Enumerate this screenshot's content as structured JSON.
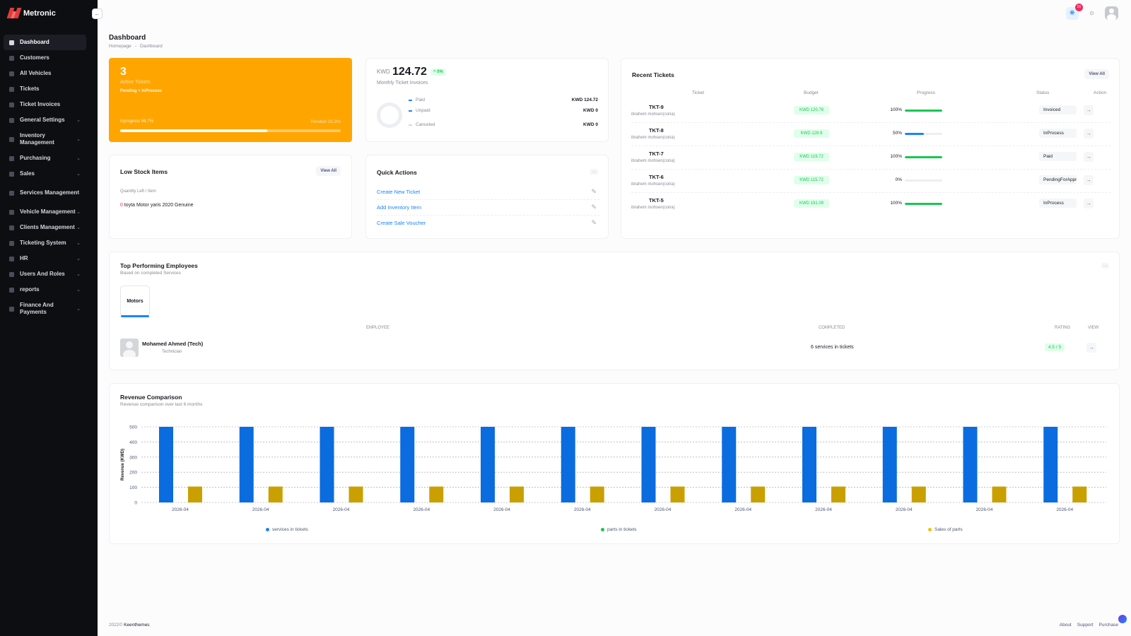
{
  "app": {
    "name": "Metronic"
  },
  "sidebar": {
    "items": [
      {
        "label": "Dashboard",
        "active": true,
        "chevron": false
      },
      {
        "label": "Customers",
        "chevron": false
      },
      {
        "label": "All Vehicles",
        "chevron": false
      },
      {
        "label": "Tickets",
        "chevron": false
      },
      {
        "label": "Ticket Invoices",
        "chevron": false
      },
      {
        "label": "General Settings",
        "chevron": true
      },
      {
        "label": "Inventory Management",
        "chevron": true,
        "tall": true
      },
      {
        "label": "Purchasing",
        "chevron": true
      },
      {
        "label": "Sales",
        "chevron": true
      },
      {
        "label": "Services Management",
        "chevron": true,
        "tall": true
      },
      {
        "label": "Vehicle Management",
        "chevron": true
      },
      {
        "label": "Clients Management",
        "chevron": true
      },
      {
        "label": "Ticketing System",
        "chevron": true
      },
      {
        "label": "HR",
        "chevron": true
      },
      {
        "label": "Users And Roles",
        "chevron": true
      },
      {
        "label": "reports",
        "chevron": true
      },
      {
        "label": "Finance And Payments",
        "chevron": true,
        "tall": true
      }
    ]
  },
  "topbar": {
    "notification_count": "16"
  },
  "page": {
    "title": "Dashboard",
    "breadcrumb": [
      "Homepage",
      "-",
      "Dashboard"
    ]
  },
  "active_tickets": {
    "count": "3",
    "label": "Active Tickets",
    "sub": "Pending + InProcess",
    "left_text": "Inprogress 66.7%",
    "right_text": "Pended 33.3%",
    "progress": 0.667,
    "color": "#ffa500"
  },
  "monthly_invoices": {
    "currency": "KWD",
    "amount": "124.72",
    "change": "^ 0%",
    "label": "Monthly Ticket Invoices",
    "legend": [
      {
        "name": "Paid",
        "value": "KWD 124.72",
        "muted": false
      },
      {
        "name": "Unpaid",
        "value": "KWD 0",
        "muted": false
      },
      {
        "name": "Canceled",
        "value": "KWD 0",
        "muted": true
      }
    ]
  },
  "recent_tickets": {
    "title": "Recent Tickets",
    "view_all": "View All",
    "columns": [
      "Ticket",
      "Budget",
      "Progress",
      "Status",
      "Action"
    ],
    "rows": [
      {
        "ticket": "TKT-9",
        "customer": "ibrahem mohsen(coria)",
        "budget": "KWD 120.78",
        "progress_label": "100%",
        "progress": 1.0,
        "bar_color": "#17c653",
        "status": "Invoiced"
      },
      {
        "ticket": "TKT-8",
        "customer": "ibrahem mohsen(coria)",
        "budget": "KWD 128.9",
        "progress_label": "50%",
        "progress": 0.5,
        "bar_color": "#1b84ff",
        "status": "InProcess"
      },
      {
        "ticket": "TKT-7",
        "customer": "ibrahem mohsen(coria)",
        "budget": "KWD 119.72",
        "progress_label": "100%",
        "progress": 1.0,
        "bar_color": "#17c653",
        "status": "Paid"
      },
      {
        "ticket": "TKT-6",
        "customer": "ibrahem mohsen(coria)",
        "budget": "KWD 115.72",
        "progress_label": "0%",
        "progress": 0.0,
        "bar_color": "#17c653",
        "status": "PendingForApproval"
      },
      {
        "ticket": "TKT-5",
        "customer": "ibrahem mohsen(coria)",
        "budget": "KWD 191.09",
        "progress_label": "100%",
        "progress": 1.0,
        "bar_color": "#17c653",
        "status": "InProcess"
      }
    ]
  },
  "low_stock": {
    "title": "Low Stock Items",
    "view_all": "View All",
    "subtitle": "Quantity Left / Item",
    "items": [
      {
        "qty": "0",
        "name": "toyta Motor yaris 2020 Genuine"
      }
    ]
  },
  "quick_actions": {
    "title": "Quick Actions",
    "items": [
      "Create New Ticket",
      "Add Inventory Item",
      "Create Sale Voucher"
    ]
  },
  "top_employees": {
    "title": "Top Performing Employees",
    "subtitle": "Based on completed Services",
    "tab": "Motors",
    "columns": {
      "employee": "EMPLOYEE",
      "completed": "COMPLETED",
      "rating": "RATING",
      "view": "VIEW"
    },
    "rows": [
      {
        "name": "Mohamed Ahmed (Tech)",
        "role": "Technician",
        "completed": "6 services in tickets",
        "rating": "4.5 / 5"
      }
    ]
  },
  "revenue": {
    "title": "Revenue Comparison",
    "subtitle": "Revenue comparison over last 6 months"
  },
  "chart_data": {
    "type": "bar",
    "title": "Revenue Comparison",
    "ylabel": "Revenue (KWD)",
    "ylim": [
      0,
      500
    ],
    "yticks": [
      0,
      100,
      200,
      300,
      400,
      500
    ],
    "grid": true,
    "legend_position": "bottom",
    "categories": [
      "2026-04",
      "2026-04",
      "2026-04",
      "2026-04",
      "2026-04",
      "2026-04",
      "2026-04",
      "2026-04",
      "2026-04",
      "2026-04",
      "2026-04",
      "2026-04"
    ],
    "series": [
      {
        "name": "services in tickets",
        "color": "#0a6cdf",
        "values": [
          500,
          500,
          500,
          500,
          500,
          500,
          500,
          500,
          500,
          500,
          500,
          500
        ]
      },
      {
        "name": "parts in tickets",
        "color": "#17c653",
        "values": [
          0,
          0,
          0,
          0,
          0,
          0,
          0,
          0,
          0,
          0,
          0,
          0
        ]
      },
      {
        "name": "Sales of parts",
        "color": "#c9a000",
        "values": [
          105,
          105,
          105,
          105,
          105,
          105,
          105,
          105,
          105,
          105,
          105,
          105
        ]
      }
    ],
    "legend_colors": [
      "#1b84ff",
      "#17c653",
      "#f6c000"
    ]
  },
  "footer": {
    "year": "2022©",
    "brand": "Keenthemes",
    "links": [
      "About",
      "Support",
      "Purchase"
    ]
  }
}
